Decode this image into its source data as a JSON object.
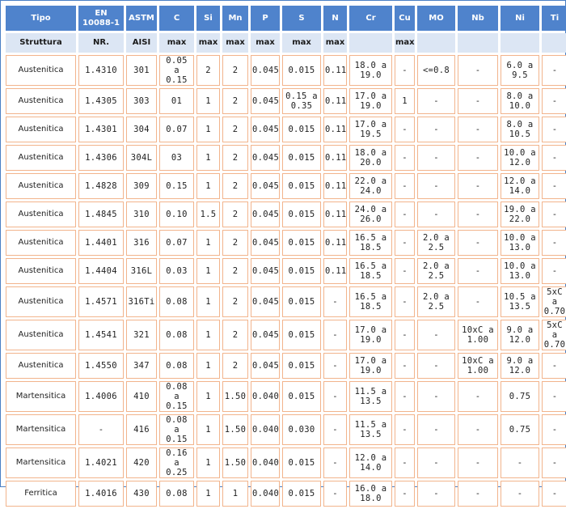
{
  "header": [
    "Tipo",
    "EN 10088-1",
    "ASTM",
    "C",
    "Si",
    "Mn",
    "P",
    "S",
    "N",
    "Cr",
    "Cu",
    "MO",
    "Nb",
    "Ni",
    "Ti"
  ],
  "subheader": [
    "Struttura",
    "NR.",
    "AISI",
    "max",
    "max",
    "max",
    "max",
    "max",
    "max",
    "",
    "max",
    "",
    "",
    "",
    ""
  ],
  "rows": [
    [
      "Austenitica",
      "1.4310",
      "301",
      "0.05 a 0.15",
      "2",
      "2",
      "0.045",
      "0.015",
      "0.11",
      "18.0 a 19.0",
      "-",
      "<=0.8",
      "-",
      "6.0 a 9.5",
      "-"
    ],
    [
      "Austenitica",
      "1.4305",
      "303",
      "01",
      "1",
      "2",
      "0.045",
      "0.15 a 0.35",
      "0.11",
      "17.0 a 19.0",
      "1",
      "-",
      "-",
      "8.0 a 10.0",
      "-"
    ],
    [
      "Austenitica",
      "1.4301",
      "304",
      "0.07",
      "1",
      "2",
      "0.045",
      "0.015",
      "0.11",
      "17.0 a 19.5",
      "-",
      "-",
      "-",
      "8.0 a 10.5",
      "-"
    ],
    [
      "Austenitica",
      "1.4306",
      "304L",
      "03",
      "1",
      "2",
      "0.045",
      "0.015",
      "0.11",
      "18.0 a 20.0",
      "-",
      "-",
      "-",
      "10.0 a 12.0",
      "-"
    ],
    [
      "Austenitica",
      "1.4828",
      "309",
      "0.15",
      "1",
      "2",
      "0.045",
      "0.015",
      "0.11",
      "22.0 a 24.0",
      "-",
      "-",
      "-",
      "12.0 a 14.0",
      "-"
    ],
    [
      "Austenitica",
      "1.4845",
      "310",
      "0.10",
      "1.5",
      "2",
      "0.045",
      "0.015",
      "0.11",
      "24.0 a 26.0",
      "-",
      "-",
      "-",
      "19.0 a 22.0",
      "-"
    ],
    [
      "Austenitica",
      "1.4401",
      "316",
      "0.07",
      "1",
      "2",
      "0.045",
      "0.015",
      "0.11",
      "16.5 a 18.5",
      "-",
      "2.0 a 2.5",
      "-",
      "10.0 a 13.0",
      "-"
    ],
    [
      "Austenitica",
      "1.4404",
      "316L",
      "0.03",
      "1",
      "2",
      "0.045",
      "0.015",
      "0.11",
      "16.5 a 18.5",
      "-",
      "2.0 a 2.5",
      "-",
      "10.0 a 13.0",
      "-"
    ],
    [
      "Austenitica",
      "1.4571",
      "316Ti",
      "0.08",
      "1",
      "2",
      "0.045",
      "0.015",
      "-",
      "16.5 a 18.5",
      "-",
      "2.0 a 2.5",
      "-",
      "10.5 a 13.5",
      "5xC a 0.70"
    ],
    [
      "Austenitica",
      "1.4541",
      "321",
      "0.08",
      "1",
      "2",
      "0.045",
      "0.015",
      "-",
      "17.0 a 19.0",
      "-",
      "-",
      "10xC a 1.00",
      "9.0 a 12.0",
      "5xC a 0.70"
    ],
    [
      "Austenitica",
      "1.4550",
      "347",
      "0.08",
      "1",
      "2",
      "0.045",
      "0.015",
      "-",
      "17.0 a 19.0",
      "-",
      "-",
      "10xC a 1.00",
      "9.0 a 12.0",
      "-"
    ],
    [
      "Martensitica",
      "1.4006",
      "410",
      "0.08 a 0.15",
      "1",
      "1.50",
      "0.040",
      "0.015",
      "-",
      "11.5 a 13.5",
      "-",
      "-",
      "-",
      "0.75",
      "-"
    ],
    [
      "Martensitica",
      "-",
      "416",
      "0.08 a 0.15",
      "1",
      "1.50",
      "0.040",
      "0.030",
      "-",
      "11.5 a 13.5",
      "-",
      "-",
      "-",
      "0.75",
      "-"
    ],
    [
      "Martensitica",
      "1.4021",
      "420",
      "0.16 a 0.25",
      "1",
      "1.50",
      "0.040",
      "0.015",
      "-",
      "12.0 a 14.0",
      "-",
      "-",
      "-",
      "-",
      "-"
    ],
    [
      "Ferritica",
      "1.4016",
      "430",
      "0.08",
      "1",
      "1",
      "0.040",
      "0.015",
      "-",
      "16.0 a 18.0",
      "-",
      "-",
      "-",
      "-",
      "-"
    ]
  ],
  "colors": {
    "header_bg": "#4f83cc",
    "subheader_bg": "#dce6f4",
    "cell_border": "#f2b48c",
    "frame_border": "#4a7fc4"
  }
}
